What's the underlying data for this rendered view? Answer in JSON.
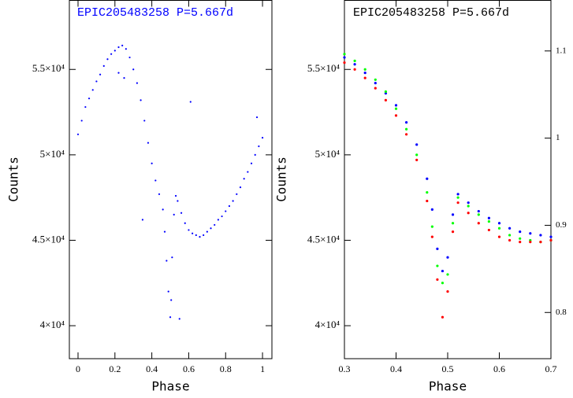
{
  "chart_data": [
    {
      "type": "scatter",
      "title": "EPIC205483258  P=5.667d",
      "title_color": "#0000ff",
      "xlabel": "Phase",
      "ylabel": "Counts",
      "xlim": [
        -0.047,
        1.051
      ],
      "ylim": [
        38070,
        59040
      ],
      "xticks": [
        0,
        0.2,
        0.4,
        0.6,
        0.8,
        1
      ],
      "yticks": [
        {
          "value": 40000,
          "label": "4×10⁴"
        },
        {
          "value": 45000,
          "label": "4.5×10⁴"
        },
        {
          "value": 50000,
          "label": "5×10⁴"
        },
        {
          "value": 55000,
          "label": "5.5×10⁴"
        }
      ],
      "color": "#0000ff",
      "x": [
        0,
        0.02,
        0.04,
        0.06,
        0.08,
        0.1,
        0.12,
        0.14,
        0.16,
        0.18,
        0.2,
        0.22,
        0.24,
        0.26,
        0.28,
        0.3,
        0.32,
        0.34,
        0.36,
        0.38,
        0.4,
        0.42,
        0.44,
        0.46,
        0.47,
        0.48,
        0.49,
        0.5,
        0.505,
        0.51,
        0.52,
        0.53,
        0.54,
        0.56,
        0.58,
        0.6,
        0.62,
        0.64,
        0.66,
        0.68,
        0.7,
        0.72,
        0.74,
        0.76,
        0.78,
        0.8,
        0.82,
        0.84,
        0.86,
        0.88,
        0.9,
        0.92,
        0.94,
        0.96,
        0.98,
        1,
        0.25,
        0.22,
        0.61,
        0.97,
        0.55,
        0.35
      ],
      "values": [
        51200,
        52000,
        52800,
        53300,
        53800,
        54300,
        54700,
        55200,
        55600,
        55900,
        56100,
        56300,
        56400,
        56200,
        55700,
        55000,
        54200,
        53200,
        52000,
        50700,
        49500,
        48500,
        47700,
        46800,
        45500,
        43800,
        42000,
        40500,
        41500,
        44000,
        46500,
        47600,
        47300,
        46600,
        46000,
        45600,
        45400,
        45300,
        45200,
        45300,
        45500,
        45700,
        45900,
        46200,
        46400,
        46700,
        47000,
        47300,
        47700,
        48100,
        48600,
        49000,
        49500,
        50000,
        50500,
        51000,
        54500,
        54800,
        53100,
        52200,
        40400,
        46200
      ]
    },
    {
      "type": "scatter",
      "title": "EPIC205483258  P=5.667d",
      "title_color": "#000000",
      "xlabel": "Phase",
      "ylabel": "Counts",
      "xlim": [
        0.3,
        0.7
      ],
      "ylim": [
        38070,
        59040
      ],
      "xticks": [
        0.3,
        0.4,
        0.5,
        0.6,
        0.7
      ],
      "yticks": [
        {
          "value": 40000,
          "label": "4×10⁴"
        },
        {
          "value": 45000,
          "label": "4.5×10⁴"
        },
        {
          "value": 50000,
          "label": "5×10⁴"
        },
        {
          "value": 55000,
          "label": "5.5×10⁴"
        }
      ],
      "y2lim": [
        0.747,
        1.158
      ],
      "y2ticks": [
        0.8,
        0.9,
        1,
        1.1
      ],
      "x": [
        0.3,
        0.32,
        0.34,
        0.36,
        0.38,
        0.4,
        0.42,
        0.44,
        0.46,
        0.47,
        0.48,
        0.49,
        0.5,
        0.51,
        0.52,
        0.54,
        0.56,
        0.58,
        0.6,
        0.62,
        0.64,
        0.66,
        0.68,
        0.7
      ],
      "series": [
        {
          "color": "#0000ff",
          "values": [
            55700,
            55300,
            54800,
            54200,
            53600,
            52900,
            51900,
            50600,
            48600,
            46800,
            44500,
            43200,
            44000,
            46500,
            47700,
            47200,
            46700,
            46300,
            46000,
            45700,
            45500,
            45400,
            45300,
            45200
          ]
        },
        {
          "color": "#00ff00",
          "values": [
            55900,
            55500,
            55000,
            54400,
            53700,
            52700,
            51500,
            50000,
            47800,
            45800,
            43500,
            42500,
            43000,
            46000,
            47500,
            47000,
            46500,
            46100,
            45700,
            45300,
            45100,
            45000,
            44900,
            45000
          ]
        },
        {
          "color": "#ff0000",
          "values": [
            55400,
            55000,
            54500,
            53900,
            53200,
            52300,
            51200,
            49700,
            47300,
            45200,
            42700,
            40500,
            42000,
            45500,
            47200,
            46600,
            46000,
            45600,
            45200,
            45000,
            44900,
            44900,
            44900,
            45000
          ]
        }
      ]
    }
  ]
}
